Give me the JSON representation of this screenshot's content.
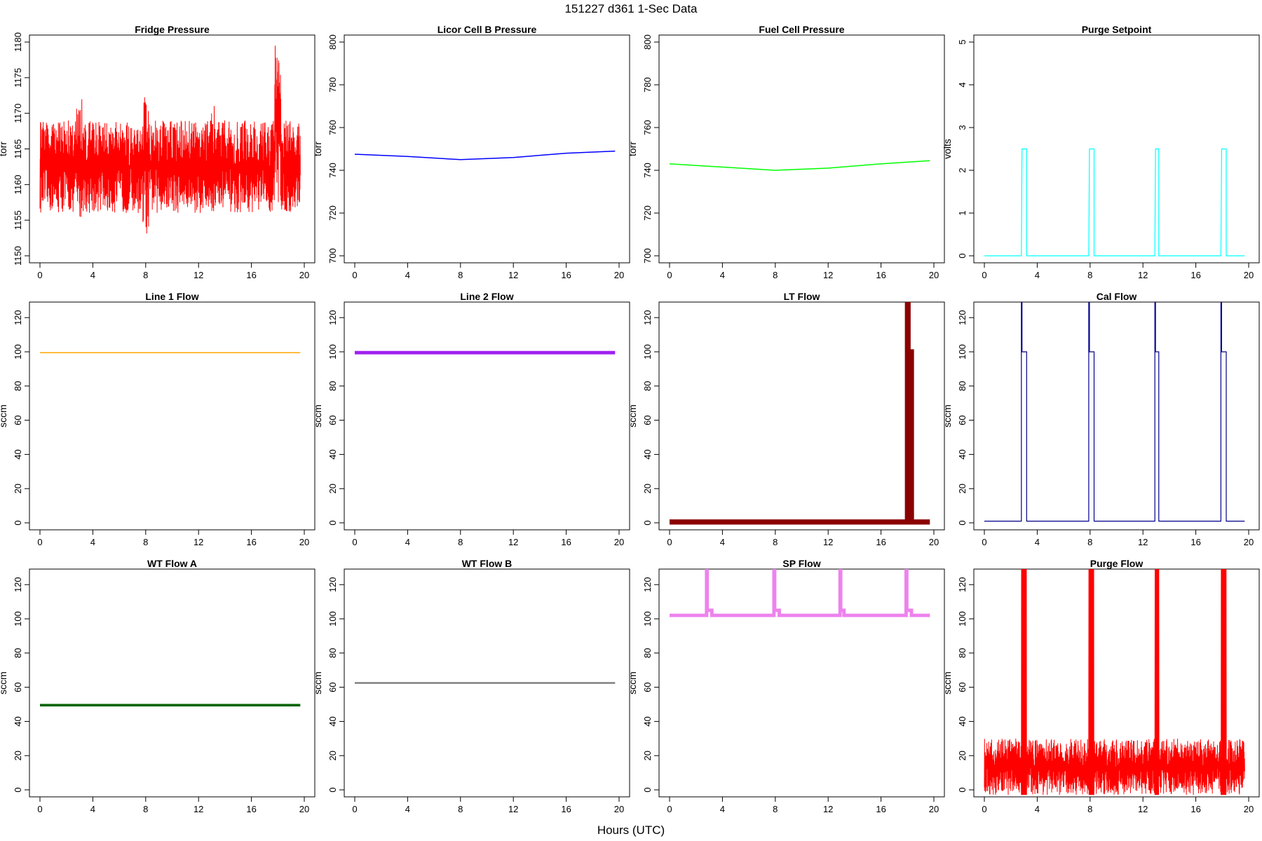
{
  "figure": {
    "title": "151227   d361   1-Sec Data",
    "xlabel": "Hours (UTC)"
  },
  "chart_data": [
    {
      "type": "line",
      "title": "Fridge Pressure",
      "ylabel": "torr",
      "ylim": [
        1150,
        1180
      ],
      "yticks": [
        1150,
        1155,
        1160,
        1165,
        1170,
        1175,
        1180
      ],
      "xlim": [
        0,
        20
      ],
      "xticks": [
        0,
        4,
        8,
        12,
        16,
        20
      ],
      "series": [
        {
          "color": "#ff0000",
          "style": "noise",
          "baseline": 1162.5,
          "band_low": 1156,
          "band_high": 1169,
          "features": [
            {
              "x": 3.0,
              "low": 1155,
              "high": 1172
            },
            {
              "x": 8.0,
              "low": 1153,
              "high": 1174
            },
            {
              "x": 13.0,
              "low": 1156,
              "high": 1172
            },
            {
              "x": 18.0,
              "low": 1157,
              "high": 1180
            }
          ]
        }
      ]
    },
    {
      "type": "line",
      "title": "Licor Cell B Pressure",
      "ylabel": "torr",
      "ylim": [
        700,
        800
      ],
      "yticks": [
        700,
        720,
        740,
        760,
        780,
        800
      ],
      "xlim": [
        0,
        20
      ],
      "xticks": [
        0,
        4,
        8,
        12,
        16,
        20
      ],
      "series": [
        {
          "color": "#0000ff",
          "x": [
            0,
            4,
            8,
            12,
            16,
            19.7
          ],
          "y": [
            747.5,
            746.5,
            745,
            746,
            748,
            749
          ]
        }
      ]
    },
    {
      "type": "line",
      "title": "Fuel Cell Pressure",
      "ylabel": "torr",
      "ylim": [
        700,
        800
      ],
      "yticks": [
        700,
        720,
        740,
        760,
        780,
        800
      ],
      "xlim": [
        0,
        20
      ],
      "xticks": [
        0,
        4,
        8,
        12,
        16,
        20
      ],
      "series": [
        {
          "color": "#00ff00",
          "x": [
            0,
            4,
            8,
            12,
            16,
            19.7
          ],
          "y": [
            743,
            741.5,
            740,
            741,
            743,
            744.5
          ]
        }
      ]
    },
    {
      "type": "line",
      "title": "Purge Setpoint",
      "ylabel": "volts",
      "ylim": [
        0,
        5
      ],
      "yticks": [
        0,
        1,
        2,
        3,
        4,
        5
      ],
      "xlim": [
        0,
        20
      ],
      "xticks": [
        0,
        4,
        8,
        12,
        16,
        20
      ],
      "series": [
        {
          "color": "#00ffff",
          "style": "pulses",
          "baseline": 0,
          "pulse_value": 2.5,
          "pulses": [
            [
              2.8,
              3.2
            ],
            [
              7.9,
              8.3
            ],
            [
              12.9,
              13.2
            ],
            [
              17.9,
              18.3
            ]
          ]
        }
      ]
    },
    {
      "type": "line",
      "title": "Line 1 Flow",
      "ylabel": "sccm",
      "ylim": [
        0,
        125
      ],
      "yticks": [
        0,
        20,
        40,
        60,
        80,
        100,
        120
      ],
      "xlim": [
        0,
        20
      ],
      "xticks": [
        0,
        4,
        8,
        12,
        16,
        20
      ],
      "series": [
        {
          "color": "#ffa500",
          "x": [
            0,
            19.7
          ],
          "y": [
            99.5,
            99.5
          ]
        }
      ]
    },
    {
      "type": "line",
      "title": "Line 2 Flow",
      "ylabel": "sccm",
      "ylim": [
        0,
        125
      ],
      "yticks": [
        0,
        20,
        40,
        60,
        80,
        100,
        120
      ],
      "xlim": [
        0,
        20
      ],
      "xticks": [
        0,
        4,
        8,
        12,
        16,
        20
      ],
      "series": [
        {
          "color": "#a020f0",
          "x": [
            0,
            19.7
          ],
          "y": [
            99.5,
            99.5
          ],
          "band": 2
        }
      ]
    },
    {
      "type": "line",
      "title": "LT Flow",
      "ylabel": "sccm",
      "ylim": [
        0,
        125
      ],
      "yticks": [
        0,
        20,
        40,
        60,
        80,
        100,
        120
      ],
      "xlim": [
        0,
        20
      ],
      "xticks": [
        0,
        4,
        8,
        12,
        16,
        20
      ],
      "series": [
        {
          "color": "#8b0000",
          "style": "pulses",
          "baseline": 0.5,
          "band": 3,
          "pulse_value": 100,
          "pulses": [
            [
              18.0,
              18.3
            ]
          ],
          "spike_value": 130
        }
      ]
    },
    {
      "type": "line",
      "title": "Cal Flow",
      "ylabel": "sccm",
      "ylim": [
        0,
        125
      ],
      "yticks": [
        0,
        20,
        40,
        60,
        80,
        100,
        120
      ],
      "xlim": [
        0,
        20
      ],
      "xticks": [
        0,
        4,
        8,
        12,
        16,
        20
      ],
      "series": [
        {
          "color": "#00008b",
          "style": "pulses",
          "baseline": 1,
          "pulse_value": 100,
          "spike_value": 130,
          "pulses": [
            [
              2.8,
              3.2
            ],
            [
              7.9,
              8.3
            ],
            [
              12.9,
              13.2
            ],
            [
              17.9,
              18.3
            ]
          ]
        }
      ]
    },
    {
      "type": "line",
      "title": "WT Flow A",
      "ylabel": "sccm",
      "ylim": [
        0,
        125
      ],
      "yticks": [
        0,
        20,
        40,
        60,
        80,
        100,
        120
      ],
      "xlim": [
        0,
        20
      ],
      "xticks": [
        0,
        4,
        8,
        12,
        16,
        20
      ],
      "series": [
        {
          "color": "#006400",
          "x": [
            0,
            19.7
          ],
          "y": [
            49.5,
            49.5
          ],
          "band": 1.5
        }
      ]
    },
    {
      "type": "line",
      "title": "WT Flow B",
      "ylabel": "sccm",
      "ylim": [
        0,
        125
      ],
      "yticks": [
        0,
        20,
        40,
        60,
        80,
        100,
        120
      ],
      "xlim": [
        0,
        20
      ],
      "xticks": [
        0,
        4,
        8,
        12,
        16,
        20
      ],
      "series": [
        {
          "color": "#808080",
          "x": [
            0,
            19.7
          ],
          "y": [
            62.5,
            62.5
          ],
          "band": 1
        }
      ]
    },
    {
      "type": "line",
      "title": "SP Flow",
      "ylabel": "sccm",
      "ylim": [
        0,
        125
      ],
      "yticks": [
        0,
        20,
        40,
        60,
        80,
        100,
        120
      ],
      "xlim": [
        0,
        20
      ],
      "xticks": [
        0,
        4,
        8,
        12,
        16,
        20
      ],
      "series": [
        {
          "color": "#ee82ee",
          "style": "pulses",
          "baseline": 102,
          "band": 2,
          "pulse_value": 105,
          "spike_value": 130,
          "pulses": [
            [
              2.8,
              3.2
            ],
            [
              7.9,
              8.3
            ],
            [
              12.9,
              13.2
            ],
            [
              17.9,
              18.3
            ]
          ]
        }
      ]
    },
    {
      "type": "line",
      "title": "Purge Flow",
      "ylabel": "sccm",
      "ylim": [
        0,
        125
      ],
      "yticks": [
        0,
        20,
        40,
        60,
        80,
        100,
        120
      ],
      "xlim": [
        0,
        20
      ],
      "xticks": [
        0,
        4,
        8,
        12,
        16,
        20
      ],
      "series": [
        {
          "color": "#ff0000",
          "style": "noise",
          "baseline": -3,
          "band_low": -3,
          "band_high": 30,
          "spike_value": 130,
          "pulses": [
            [
              2.8,
              3.2
            ],
            [
              7.9,
              8.3
            ],
            [
              12.9,
              13.2
            ],
            [
              17.9,
              18.3
            ]
          ]
        }
      ]
    }
  ]
}
